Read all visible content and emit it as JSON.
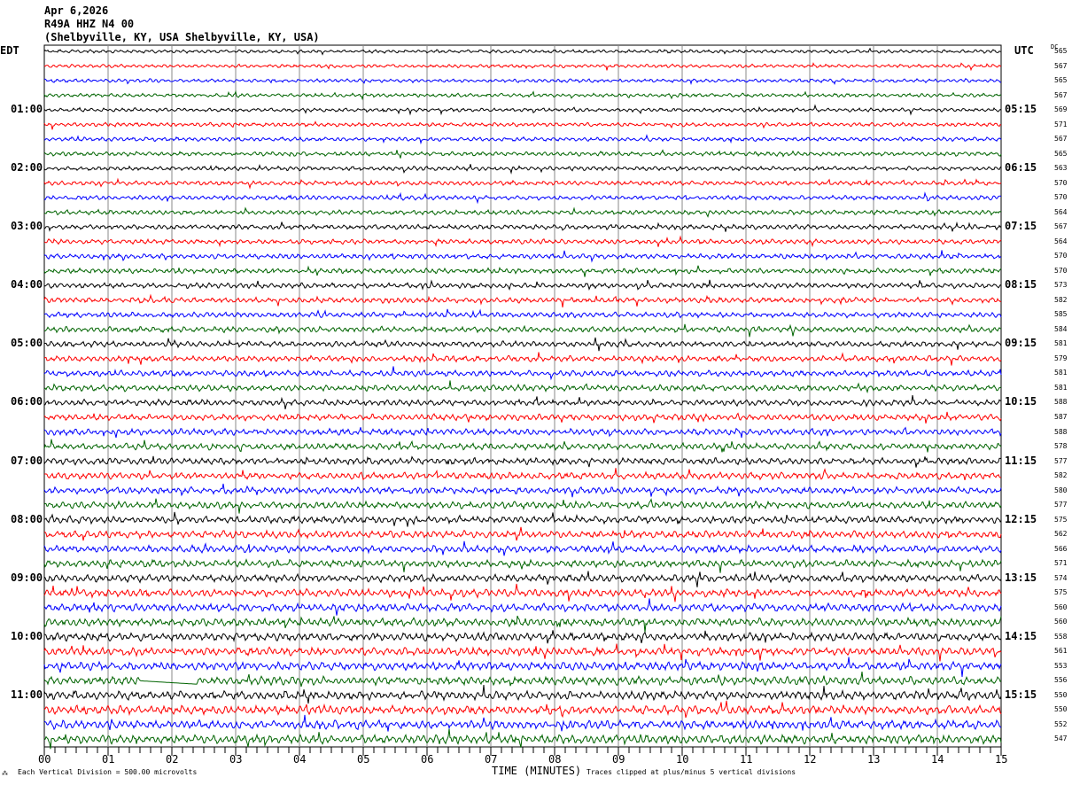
{
  "header": {
    "date": "Apr 6,2026",
    "station": "R49A HHZ N4 00",
    "location": "(Shelbyville, KY, USA Shelbyville, KY, USA)"
  },
  "left_timezone": "EDT",
  "right_timezone": "UTC",
  "dc_label": "DC",
  "chart_data": {
    "type": "line",
    "subtype": "helicorder",
    "xlabel": "TIME (MINUTES)",
    "xlim": [
      0,
      15
    ],
    "x_ticks": [
      "00",
      "01",
      "02",
      "03",
      "04",
      "05",
      "06",
      "07",
      "08",
      "09",
      "10",
      "11",
      "12",
      "13",
      "14",
      "15"
    ],
    "trace_minutes": 15,
    "trace_count": 48,
    "trace_colors": [
      "#000000",
      "#ff0000",
      "#0000ff",
      "#006400"
    ],
    "left_hour_labels": [
      {
        "row": 4,
        "text": "01:00"
      },
      {
        "row": 8,
        "text": "02:00"
      },
      {
        "row": 12,
        "text": "03:00"
      },
      {
        "row": 16,
        "text": "04:00"
      },
      {
        "row": 20,
        "text": "05:00"
      },
      {
        "row": 24,
        "text": "06:00"
      },
      {
        "row": 28,
        "text": "07:00"
      },
      {
        "row": 32,
        "text": "08:00"
      },
      {
        "row": 36,
        "text": "09:00"
      },
      {
        "row": 40,
        "text": "10:00"
      },
      {
        "row": 44,
        "text": "11:00"
      }
    ],
    "right_hour_labels": [
      {
        "row": 4,
        "text": "05:15"
      },
      {
        "row": 8,
        "text": "06:15"
      },
      {
        "row": 12,
        "text": "07:15"
      },
      {
        "row": 16,
        "text": "08:15"
      },
      {
        "row": 20,
        "text": "09:15"
      },
      {
        "row": 24,
        "text": "10:15"
      },
      {
        "row": 28,
        "text": "11:15"
      },
      {
        "row": 32,
        "text": "12:15"
      },
      {
        "row": 36,
        "text": "13:15"
      },
      {
        "row": 40,
        "text": "14:15"
      },
      {
        "row": 44,
        "text": "15:15"
      }
    ],
    "dc_offsets": [
      565,
      567,
      565,
      567,
      569,
      571,
      567,
      565,
      563,
      570,
      570,
      564,
      567,
      564,
      570,
      570,
      573,
      582,
      585,
      584,
      581,
      579,
      581,
      581,
      588,
      587,
      588,
      578,
      577,
      582,
      580,
      577,
      575,
      562,
      566,
      571,
      574,
      575,
      560,
      560,
      558,
      561,
      553,
      556,
      550,
      550,
      552,
      547
    ],
    "scale_note": "Each Vertical Division =  500.00 microvolts",
    "clip_note": "Traces clipped at plus/minus 5 vertical divisions"
  }
}
